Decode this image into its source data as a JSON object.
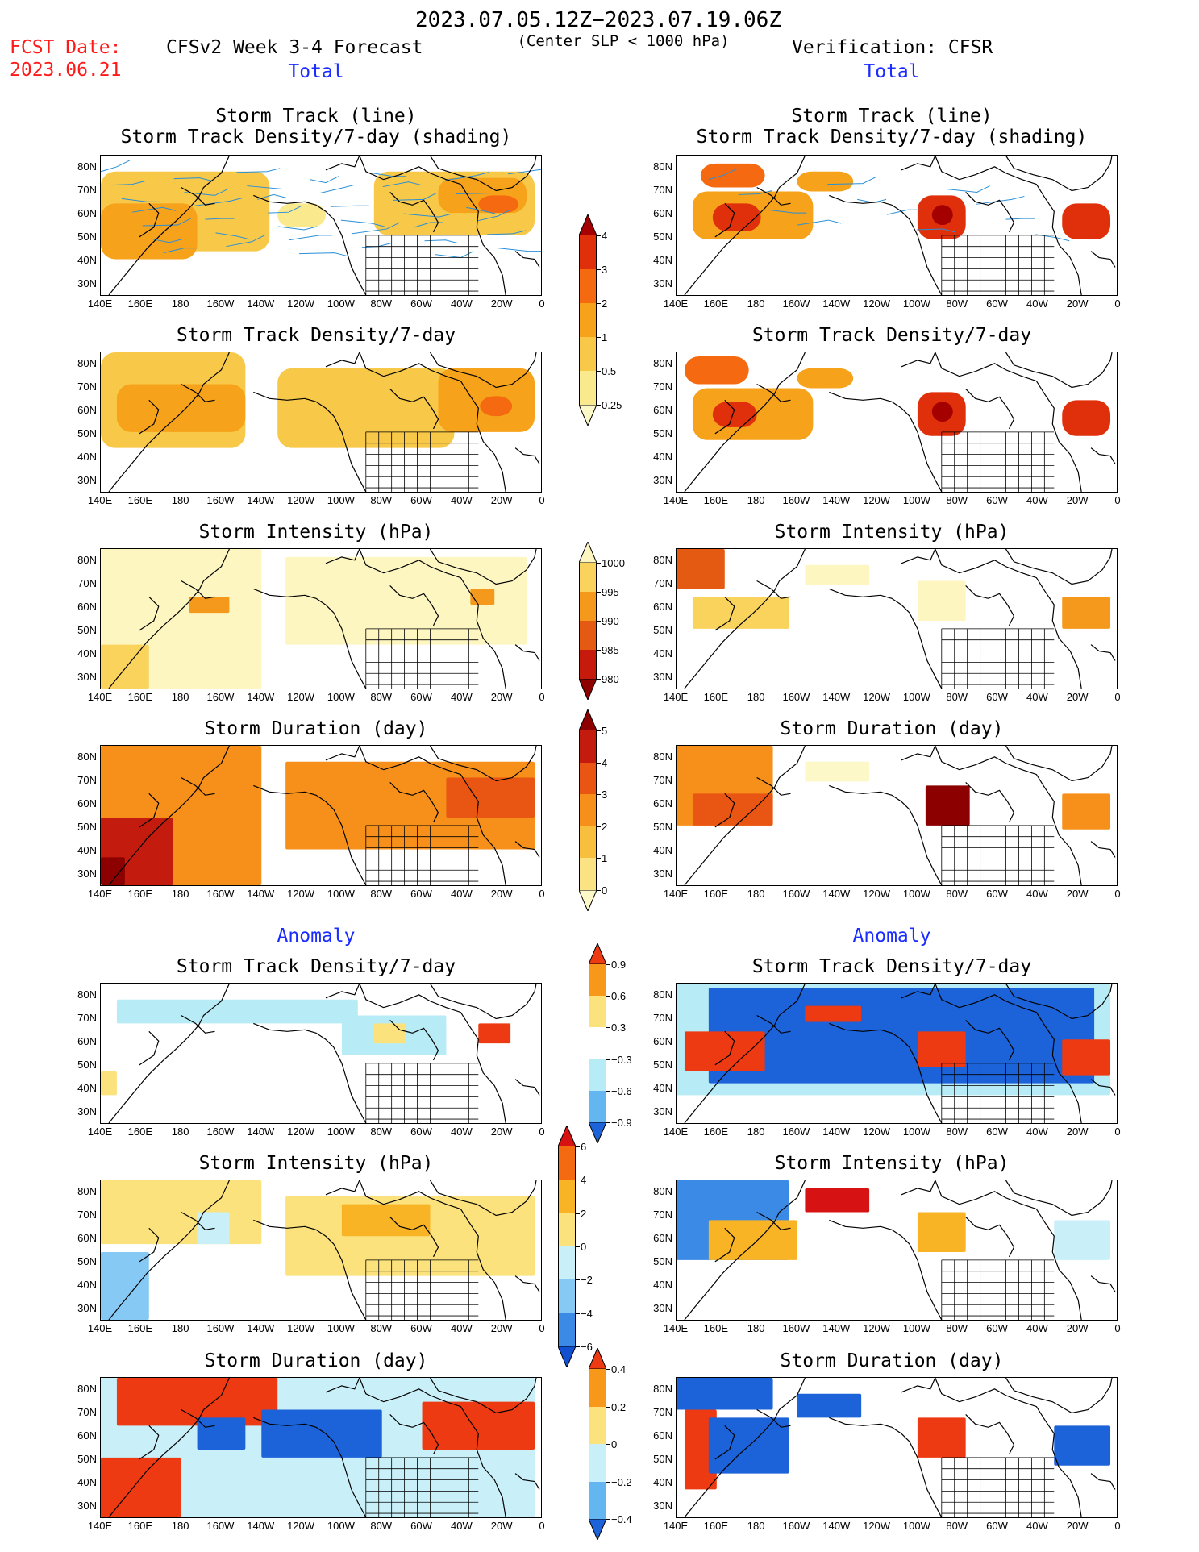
{
  "header": {
    "date_range": "2023.07.05.12Z−2023.07.19.06Z",
    "fcst_label": "FCST Date:",
    "fcst_date": "2023.06.21",
    "forecast_title": "CFSv2 Week 3-4 Forecast",
    "criterion": "(Center SLP < 1000 hPa)",
    "verification": "Verification: CFSR"
  },
  "sections": {
    "total_left": "Total",
    "total_right": "Total",
    "anomaly_left": "Anomaly",
    "anomaly_right": "Anomaly"
  },
  "panel_titles": {
    "track_line": "Storm Track (line)",
    "track_shading": "Storm Track Density/7-day (shading)",
    "density": "Storm Track Density/7-day",
    "intensity": "Storm Intensity (hPa)",
    "duration": "Storm Duration (day)"
  },
  "axes": {
    "lat_ticks": [
      "80N",
      "70N",
      "60N",
      "50N",
      "40N",
      "30N"
    ],
    "lon_ticks": [
      "140E",
      "160E",
      "180",
      "160W",
      "140W",
      "120W",
      "100W",
      "80W",
      "60W",
      "40W",
      "20W",
      "0"
    ]
  },
  "colorbars": {
    "density_total": {
      "labels": [
        "4",
        "3",
        "2",
        "1",
        "0.5",
        "0.25"
      ],
      "colors": [
        "#a50000",
        "#e0300b",
        "#f56a10",
        "#f7a21b",
        "#f8c848",
        "#fbe98e",
        "#fdf8c8"
      ]
    },
    "intensity_total": {
      "labels": [
        "1000",
        "995",
        "990",
        "985",
        "980"
      ],
      "colors": [
        "#fdf6c0",
        "#f9d35c",
        "#f5991c",
        "#e55a12",
        "#c51a0c",
        "#8c0000"
      ]
    },
    "duration_total": {
      "labels": [
        "5",
        "4",
        "3",
        "2",
        "1",
        "0"
      ],
      "colors": [
        "#8c0000",
        "#c31b0e",
        "#e95512",
        "#f6901a",
        "#f8be3e",
        "#fbe383",
        "#fdf8c8"
      ]
    },
    "density_anom": {
      "labels": [
        "0.9",
        "0.6",
        "0.3",
        "−0.3",
        "−0.6",
        "−0.9"
      ],
      "colors": [
        "#ee3a12",
        "#f7981a",
        "#fbe27c",
        "#ffffff",
        "#b7ecf7",
        "#63b6f0",
        "#1c62d8"
      ]
    },
    "intensity_anom": {
      "labels": [
        "6",
        "4",
        "2",
        "0",
        "−2",
        "−4",
        "−6"
      ],
      "colors": [
        "#d61212",
        "#f46a10",
        "#f8b424",
        "#fbe27c",
        "#c9f0f9",
        "#85c9f4",
        "#3b8ae6",
        "#1150d0"
      ]
    },
    "duration_anom": {
      "labels": [
        "0.4",
        "0.2",
        "0",
        "−0.2",
        "−0.4"
      ],
      "colors": [
        "#ee3a12",
        "#f7981a",
        "#fbe27c",
        "#c9f0f9",
        "#63b6f0",
        "#1c62d8"
      ]
    }
  },
  "legend_colors": {
    "track_line": "#2a8fd6",
    "land_outline": "#000000"
  }
}
